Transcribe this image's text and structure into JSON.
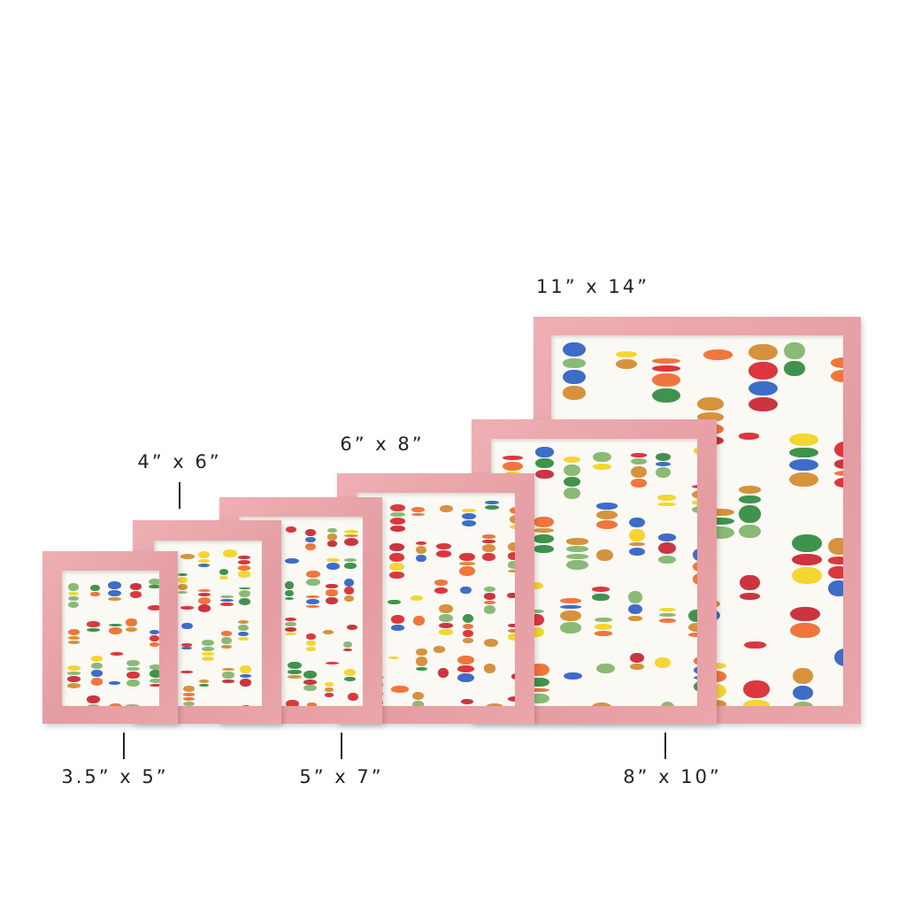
{
  "frame_color": "#e8a3a8",
  "paint_colors": [
    "#d9262b",
    "#ef6a2a",
    "#f4d21f",
    "#2f8a3d",
    "#2d5fc4",
    "#d48a2a",
    "#7fb56a",
    "#c8232f"
  ],
  "sizes": [
    {
      "id": "11x14",
      "label": "11” x 14”"
    },
    {
      "id": "8x10",
      "label": "8” x 10”"
    },
    {
      "id": "6x8",
      "label": "6” x 8”"
    },
    {
      "id": "5x7",
      "label": "5” x 7”"
    },
    {
      "id": "4x6",
      "label": "4” x 6”"
    },
    {
      "id": "3.5x5",
      "label": "3.5” x 5”"
    }
  ]
}
